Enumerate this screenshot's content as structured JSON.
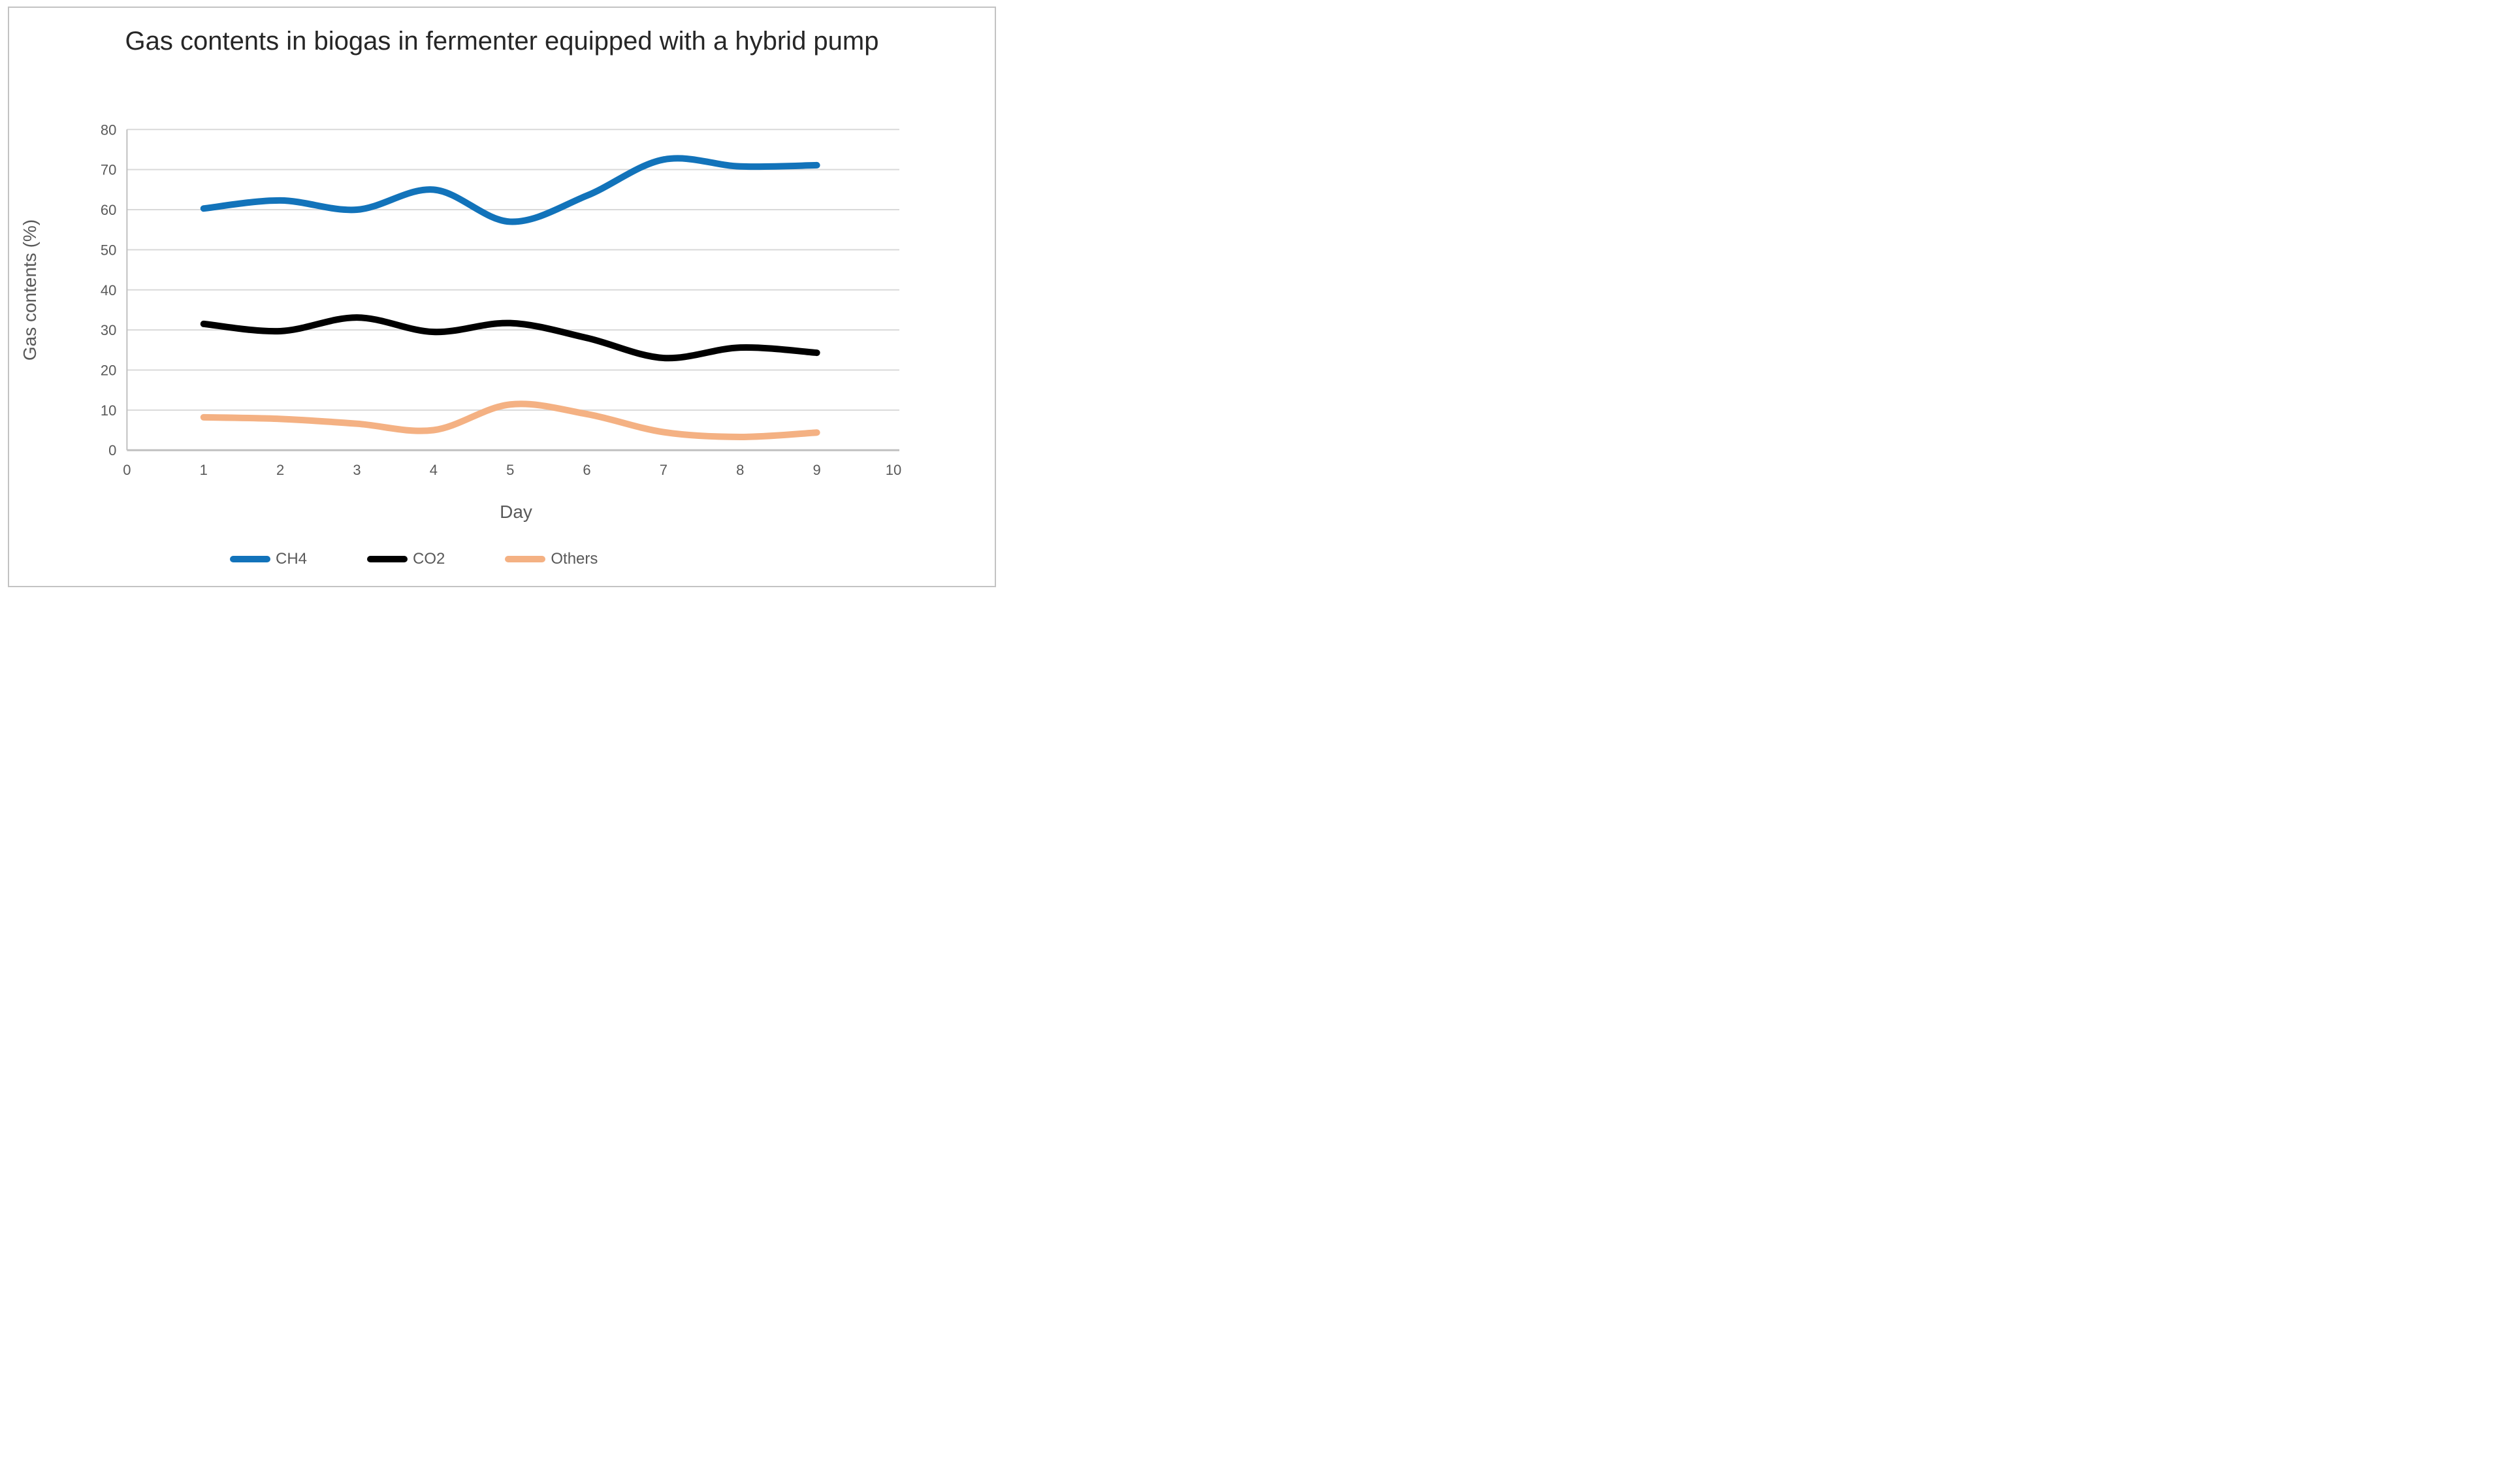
{
  "chart_data": {
    "type": "line",
    "title": "Gas contents in biogas in fermenter equipped with a hybrid pump",
    "xlabel": "Day",
    "ylabel": "Gas contents (%)",
    "x": [
      1,
      2,
      3,
      4,
      5,
      6,
      7,
      8,
      9
    ],
    "xlim": [
      0,
      10
    ],
    "ylim": [
      0,
      80
    ],
    "xtick_step": 1,
    "ytick_step": 10,
    "grid": "horizontal",
    "line_style": "smooth",
    "legend_position": "bottom",
    "series": [
      {
        "name": "CH4",
        "color": "#1273BA",
        "values": [
          60.3,
          62.3,
          60.0,
          65.0,
          57.0,
          63.5,
          72.5,
          70.8,
          71.1
        ]
      },
      {
        "name": "CO2",
        "color": "#000000",
        "values": [
          31.5,
          29.7,
          33.1,
          29.5,
          31.7,
          28.0,
          23.0,
          25.6,
          24.3
        ]
      },
      {
        "name": "Others",
        "color": "#F4B183",
        "values": [
          8.2,
          7.8,
          6.6,
          5.0,
          11.4,
          9.0,
          4.5,
          3.3,
          4.4
        ]
      }
    ]
  },
  "colors": {
    "gridline": "#D9D9D9",
    "axis_line": "#C0C0C0",
    "tick_text": "#595959",
    "title_text": "#262626",
    "frame_border": "#C3C3C3"
  }
}
